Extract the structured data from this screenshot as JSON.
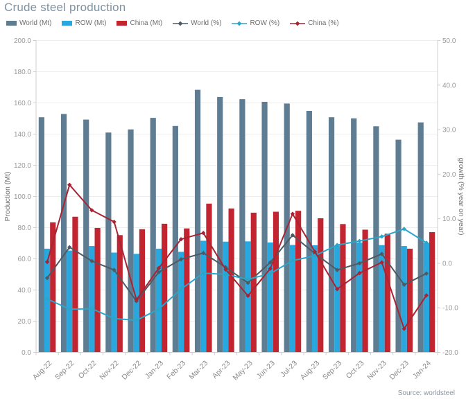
{
  "title": "Crude steel production",
  "source_note": "Source: worldsteel",
  "colors": {
    "title_text": "#7d92a2",
    "legend_text": "#6e6e6e",
    "tick_text": "#999999",
    "axis_title_text": "#6f6f6f",
    "source_text": "#8b96a0",
    "grid_line": "#ededed",
    "axis_line": "#cfcfcf",
    "world_bar": "#5e7d92",
    "row_bar": "#29a8df",
    "china_bar": "#c22430",
    "world_line": "#4e5a63",
    "row_line": "#2ba6c9",
    "china_line": "#a62433"
  },
  "chart_data": {
    "type": "combo-bar-line",
    "title": "Crude steel production",
    "categories": [
      "Aug-22",
      "Sep-22",
      "Oct-22",
      "Nov-22",
      "Dec-22",
      "Jan-23",
      "Feb-23",
      "Mar-23",
      "Apr-23",
      "May-23",
      "Jun-23",
      "Jul-23",
      "Aug-23",
      "Sep-23",
      "Oct-23",
      "Nov-23",
      "Dec-23",
      "Jan-24"
    ],
    "bar_series": [
      {
        "name": "World (Mt)",
        "color_key": "world_bar",
        "values": [
          150.8,
          152.9,
          149.3,
          141.0,
          143.0,
          150.4,
          145.2,
          168.4,
          163.8,
          162.4,
          160.7,
          159.6,
          154.9,
          150.8,
          150.1,
          145.0,
          136.4,
          147.5
        ]
      },
      {
        "name": "ROW (Mt)",
        "color_key": "row_bar",
        "values": [
          66.5,
          65.3,
          68.2,
          64.0,
          63.2,
          66.5,
          64.5,
          71.6,
          71.0,
          71.2,
          70.5,
          68.9,
          68.7,
          68.5,
          70.4,
          68.8,
          68.2,
          70.0
        ]
      },
      {
        "name": "China (Mt)",
        "color_key": "china_bar",
        "values": [
          83.4,
          87.0,
          79.8,
          75.2,
          79.0,
          82.5,
          79.5,
          95.4,
          92.3,
          89.6,
          90.2,
          90.8,
          86.0,
          82.3,
          78.7,
          76.1,
          66.5,
          77.1
        ]
      }
    ],
    "line_series": [
      {
        "name": "World (%)",
        "color_key": "world_line",
        "values": [
          -3.3,
          3.6,
          0.5,
          -1.5,
          -8.5,
          -2.0,
          0.9,
          2.3,
          -0.9,
          -4.4,
          0.2,
          6.3,
          2.2,
          -1.5,
          0.0,
          2.1,
          -4.8,
          -2.3
        ]
      },
      {
        "name": "ROW (%)",
        "color_key": "row_line",
        "values": [
          -8.0,
          -10.3,
          -10.2,
          -12.4,
          -12.8,
          -10.3,
          -5.8,
          -2.2,
          -2.5,
          -3.6,
          -2.3,
          0.6,
          1.7,
          4.1,
          5.0,
          6.0,
          7.7,
          4.6
        ]
      },
      {
        "name": "China (%)",
        "color_key": "china_line",
        "values": [
          0.3,
          17.6,
          11.9,
          9.3,
          -8.2,
          -1.1,
          5.4,
          6.8,
          -1.4,
          -7.3,
          -1.2,
          11.1,
          2.6,
          -5.8,
          -2.2,
          0.2,
          -14.7,
          -7.2
        ]
      }
    ],
    "left_axis": {
      "label": "Production (Mt)",
      "min": 0,
      "max": 200,
      "tick_step": 20,
      "tick_labels": [
        "0.0",
        "20.0",
        "40.0",
        "60.0",
        "80.0",
        "100.0",
        "120.0",
        "140.0",
        "160.0",
        "180.0",
        "200.0"
      ]
    },
    "right_axis": {
      "label": "growth (% year on year)",
      "min": -20,
      "max": 50,
      "tick_step": 10,
      "tick_labels": [
        "-20.0",
        "-10.0",
        "0.0",
        "10.0",
        "20.0",
        "30.0",
        "40.0",
        "50.0"
      ]
    },
    "grid": "horizontal",
    "legend_position": "top-left",
    "x_label_rotation": -45
  }
}
